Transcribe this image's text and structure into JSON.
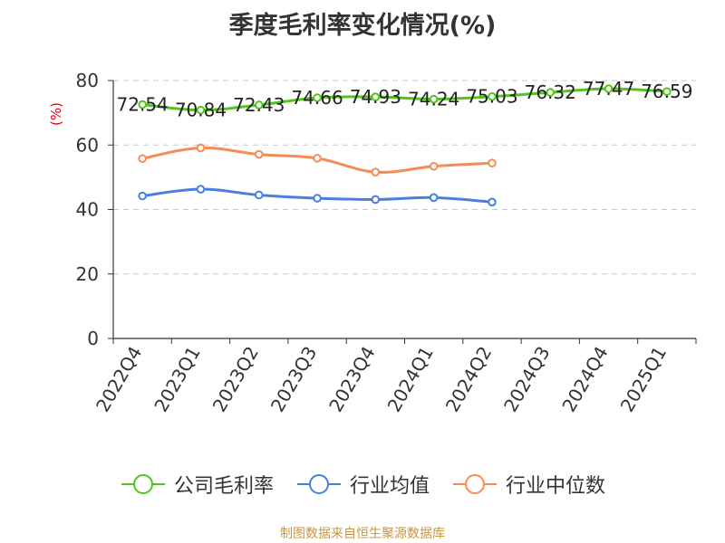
{
  "chart_data": {
    "type": "line",
    "title": "季度毛利率变化情况(%)",
    "ylabel": "(%)",
    "ylim": [
      0,
      80
    ],
    "yticks": [
      0,
      20,
      40,
      60,
      80
    ],
    "grid": true,
    "legend_position": "bottom",
    "categories": [
      "2022Q4",
      "2023Q1",
      "2023Q2",
      "2023Q3",
      "2023Q4",
      "2024Q1",
      "2024Q2",
      "2024Q3",
      "2024Q4",
      "2025Q1"
    ],
    "series": [
      {
        "name": "公司毛利率",
        "color": "#52c41a",
        "values": [
          72.54,
          70.84,
          72.43,
          74.66,
          74.93,
          74.24,
          75.03,
          76.32,
          77.47,
          76.59
        ],
        "labels": [
          "72.54",
          "70.84",
          "72.43",
          "74.66",
          "74.93",
          "74.24",
          "75.03",
          "76.32",
          "77.47",
          "76.59"
        ]
      },
      {
        "name": "行业均值",
        "color": "#4a7fe0",
        "values": [
          44.2,
          46.3,
          44.5,
          43.5,
          43.1,
          43.7,
          42.3,
          null,
          null,
          null
        ]
      },
      {
        "name": "行业中位数",
        "color": "#f58b55",
        "values": [
          55.8,
          59.1,
          57.1,
          55.9,
          51.6,
          53.4,
          54.4,
          null,
          null,
          null
        ]
      }
    ]
  },
  "source": "制图数据来自恒生聚源数据库"
}
